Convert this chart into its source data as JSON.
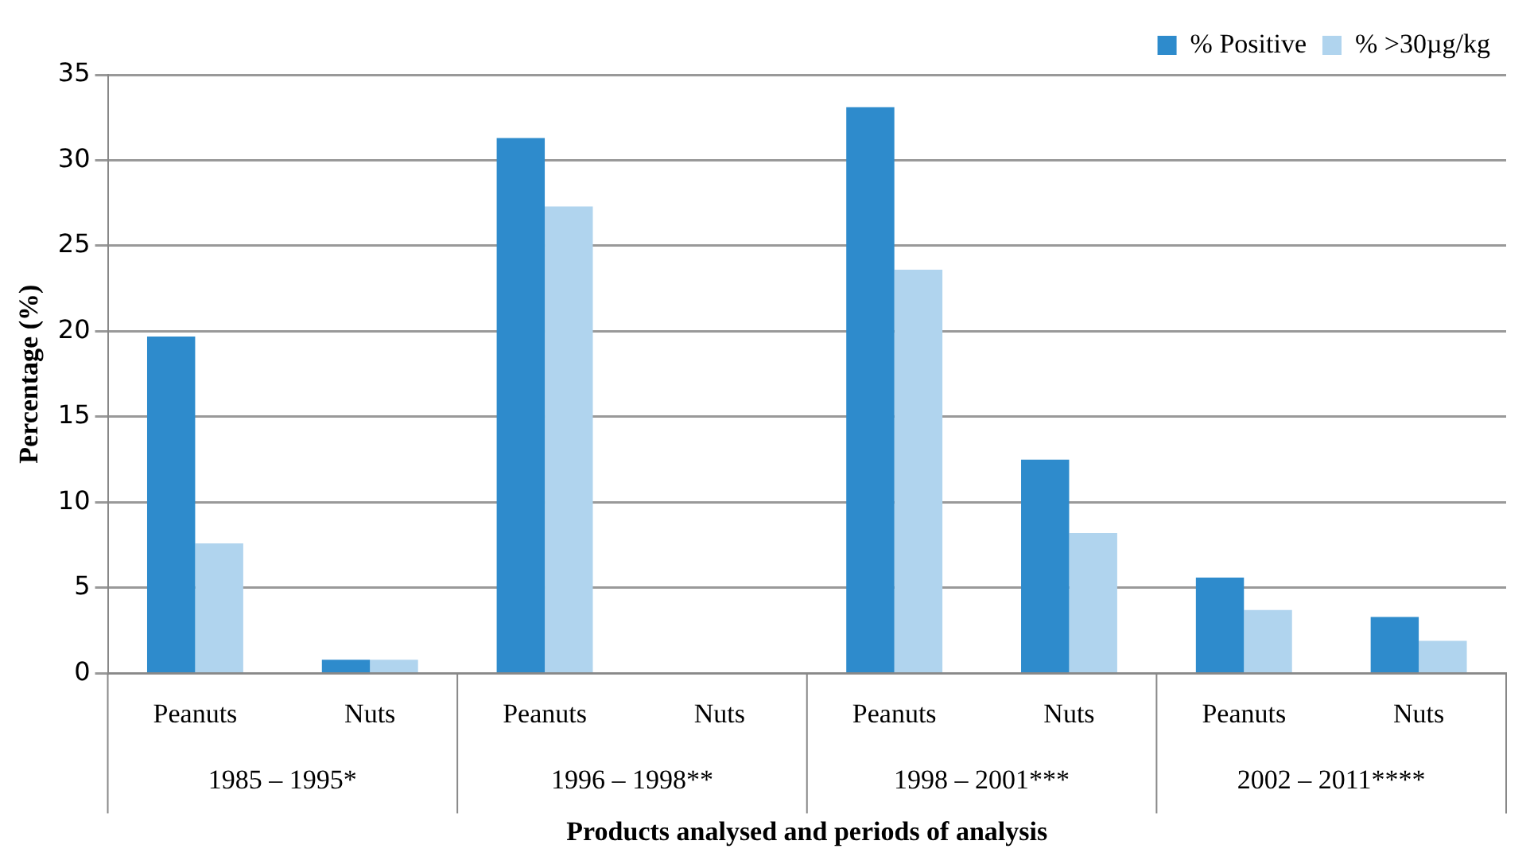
{
  "chart_data": {
    "type": "bar",
    "xlabel": "Products analysed and periods of analysis",
    "ylabel": "Percentage (%)",
    "categories": [
      "Peanuts",
      "Nuts",
      "Peanuts",
      "Nuts",
      "Peanuts",
      "Nuts",
      "Peanuts",
      "Nuts"
    ],
    "series": [
      {
        "name": "% Positive",
        "color": "#2e8bcc",
        "values": [
          19.7,
          0.8,
          31.3,
          0,
          33.1,
          12.5,
          5.6,
          3.3
        ]
      },
      {
        "name": "% >30µg/kg",
        "color": "#b0d4ee",
        "values": [
          7.6,
          0.8,
          27.3,
          0,
          23.6,
          8.2,
          3.7,
          1.9
        ]
      }
    ],
    "annotations": [
      "1985 – 1995*",
      "1996 – 1998**",
      "1998 – 2001***",
      "2002 – 2011****"
    ],
    "ylim": [
      0,
      35
    ],
    "yticks": [
      0,
      5,
      10,
      15,
      20,
      25,
      30,
      35
    ],
    "grid": "y",
    "legend": "top right"
  }
}
